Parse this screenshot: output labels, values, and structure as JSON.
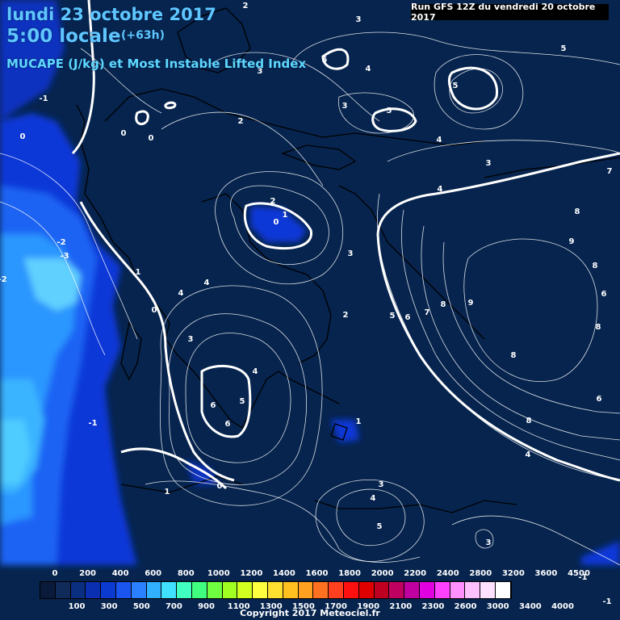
{
  "title": {
    "date": "lundi 23 octobre 2017",
    "time": "5:00 locale",
    "lead": "(+63h)",
    "parameter": "MUCAPE (J/kg) et Most Instable Lifted Index"
  },
  "run_info": "Run GFS 12Z du vendredi 20 octobre 2017",
  "copyright": "Copyright 2017 Meteociel.fr",
  "colors": {
    "background": "#06244e",
    "contour": "#ffffff",
    "coastline": "#000000",
    "title": "#5fc6ff"
  },
  "colorbar": {
    "top_labels": [
      "0",
      "200",
      "400",
      "600",
      "800",
      "1000",
      "1200",
      "1400",
      "1600",
      "1800",
      "2000",
      "2200",
      "2400",
      "2800",
      "3200",
      "3600",
      "4500"
    ],
    "bottom_labels": [
      "100",
      "300",
      "500",
      "700",
      "900",
      "1100",
      "1300",
      "1500",
      "1700",
      "1900",
      "2100",
      "2300",
      "2600",
      "3000",
      "3400",
      "4000"
    ],
    "colors": [
      "#0a1a3a",
      "#102a5a",
      "#0a2f80",
      "#0a2fb0",
      "#0a3ad0",
      "#1a55f0",
      "#2a80ff",
      "#30b0ff",
      "#40e0ff",
      "#40ffc0",
      "#40ff80",
      "#70ff40",
      "#a0ff20",
      "#d0ff20",
      "#ffff40",
      "#ffe030",
      "#ffc020",
      "#ffa020",
      "#ff7020",
      "#ff4020",
      "#ff1010",
      "#e00000",
      "#c00020",
      "#c00060",
      "#c000a0",
      "#e000e0",
      "#ff40ff",
      "#ff90ff",
      "#ffc0ff",
      "#ffe0ff",
      "#ffffff"
    ]
  },
  "contour_labels": [
    {
      "text": "2"
    },
    {
      "text": "3"
    },
    {
      "text": "5"
    },
    {
      "text": "4"
    },
    {
      "text": "5"
    },
    {
      "text": "5"
    },
    {
      "text": "-1"
    },
    {
      "text": "0"
    },
    {
      "text": "0"
    },
    {
      "text": "0"
    },
    {
      "text": "3"
    },
    {
      "text": "5"
    },
    {
      "text": "2"
    },
    {
      "text": "3"
    },
    {
      "text": "4"
    },
    {
      "text": "3"
    },
    {
      "text": "4"
    },
    {
      "text": "7"
    },
    {
      "text": "2"
    },
    {
      "text": "1"
    },
    {
      "text": "0"
    },
    {
      "text": "8"
    },
    {
      "text": "9"
    },
    {
      "text": "-2"
    },
    {
      "text": "-3"
    },
    {
      "text": "3"
    },
    {
      "text": "8"
    },
    {
      "text": "1"
    },
    {
      "text": "4"
    },
    {
      "text": "4"
    },
    {
      "text": "-2"
    },
    {
      "text": "0"
    },
    {
      "text": "2"
    },
    {
      "text": "5"
    },
    {
      "text": "6"
    },
    {
      "text": "7"
    },
    {
      "text": "8"
    },
    {
      "text": "9"
    },
    {
      "text": "8"
    },
    {
      "text": "3"
    },
    {
      "text": "4"
    },
    {
      "text": "8"
    },
    {
      "text": "6"
    },
    {
      "text": "5"
    },
    {
      "text": "6"
    },
    {
      "text": "6"
    },
    {
      "text": "1"
    },
    {
      "text": "8"
    },
    {
      "text": "-1"
    },
    {
      "text": "4"
    },
    {
      "text": "1"
    },
    {
      "text": "0"
    },
    {
      "text": "3"
    },
    {
      "text": "4"
    },
    {
      "text": "5"
    },
    {
      "text": "3"
    },
    {
      "text": "1"
    },
    {
      "text": "-1"
    },
    {
      "text": "-1"
    },
    {
      "text": "6"
    },
    {
      "text": "-3"
    }
  ]
}
